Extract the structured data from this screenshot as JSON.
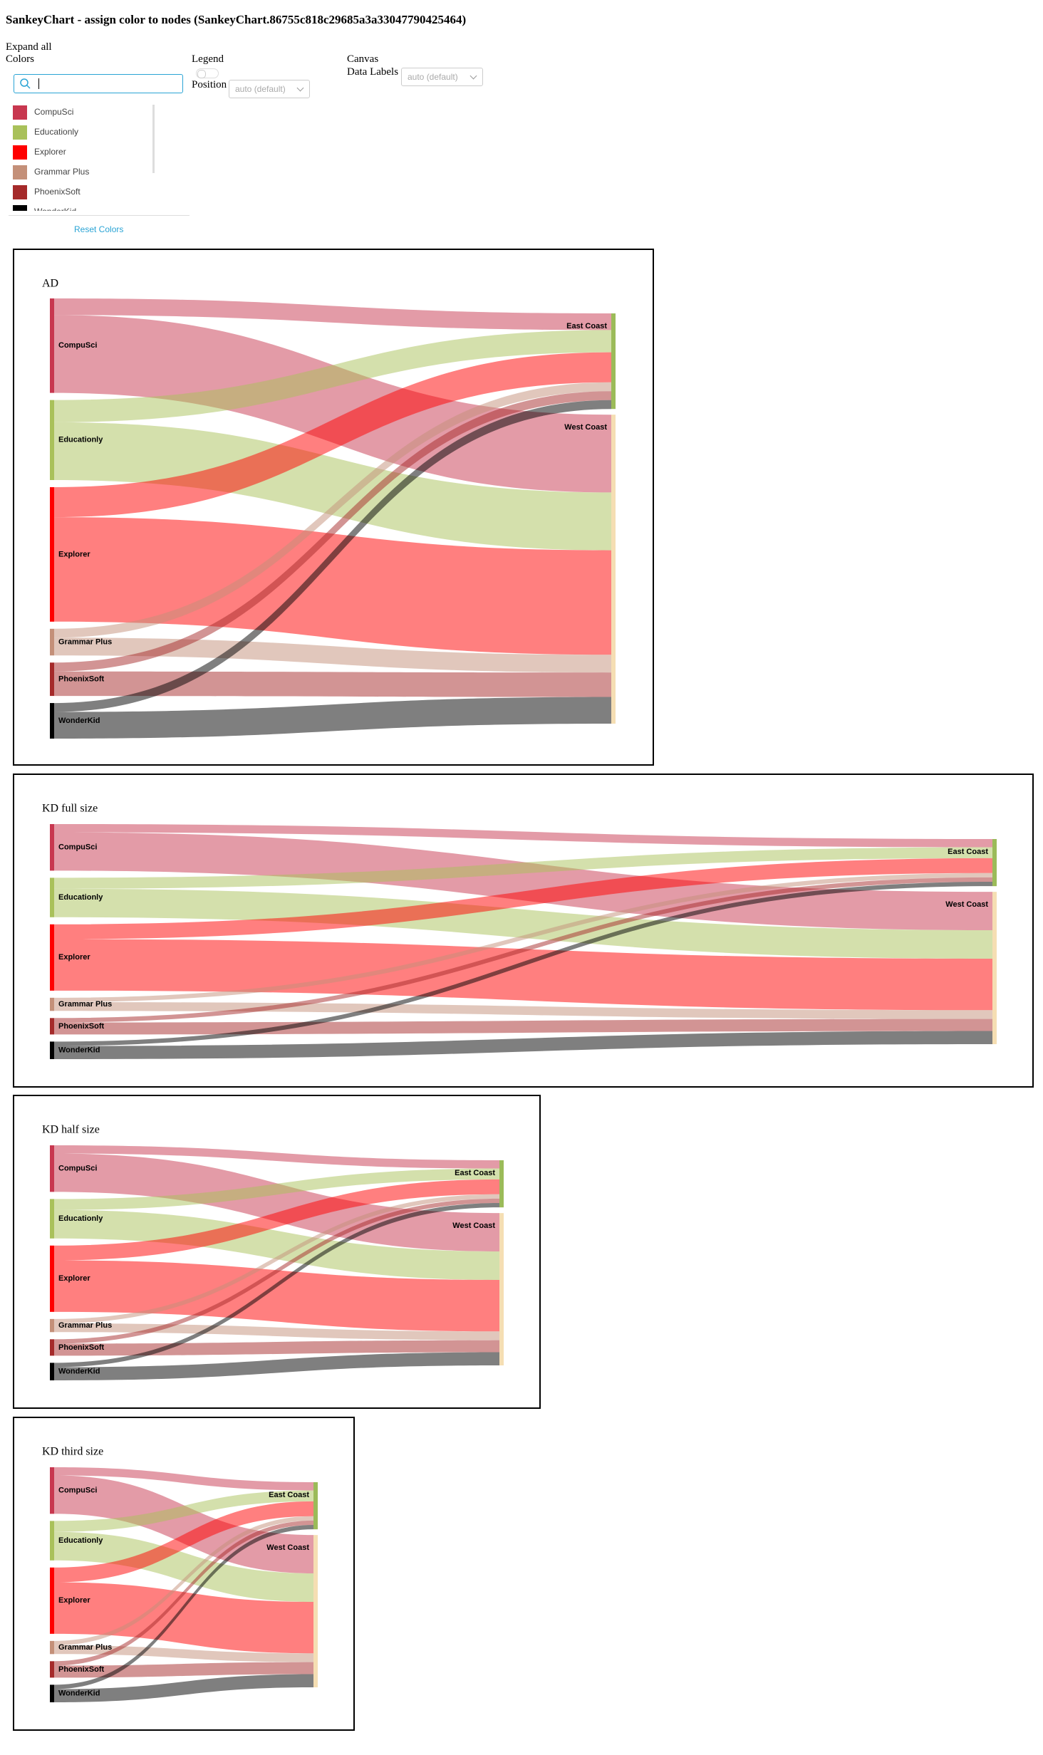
{
  "title": "SankeyChart - assign color to nodes (SankeyChart.86755c818c29685a3a33047790425464)",
  "panel": {
    "expand_all": "Expand all",
    "colors_label": "Colors",
    "reset": "Reset Colors",
    "legend_label": "Legend",
    "position_label": "Position",
    "position_value": "auto (default)",
    "canvas_label": "Canvas",
    "data_labels_label": "Data Labels",
    "data_labels_value": "auto (default)"
  },
  "charts": [
    {
      "type": "sankey",
      "title": "AD"
    },
    {
      "type": "sankey",
      "title": "KD full size"
    },
    {
      "type": "sankey",
      "title": "KD half size"
    },
    {
      "type": "sankey",
      "title": "KD third size"
    }
  ],
  "sankey": {
    "sources": [
      {
        "name": "CompuSci",
        "color": "#c8374f"
      },
      {
        "name": "Educationly",
        "color": "#a9c15a"
      },
      {
        "name": "Explorer",
        "color": "#ff0000"
      },
      {
        "name": "Grammar Plus",
        "color": "#c49079"
      },
      {
        "name": "PhoenixSoft",
        "color": "#a52a2a"
      },
      {
        "name": "WonderKid",
        "color": "#000000"
      }
    ],
    "targets": [
      {
        "name": "East Coast",
        "color": "#9bbb59",
        "values": [
          15,
          20,
          27,
          8,
          8,
          8
        ]
      },
      {
        "name": "West Coast",
        "color": "#f5deb3",
        "values": [
          70,
          52,
          94,
          16,
          22,
          24
        ]
      }
    ]
  }
}
